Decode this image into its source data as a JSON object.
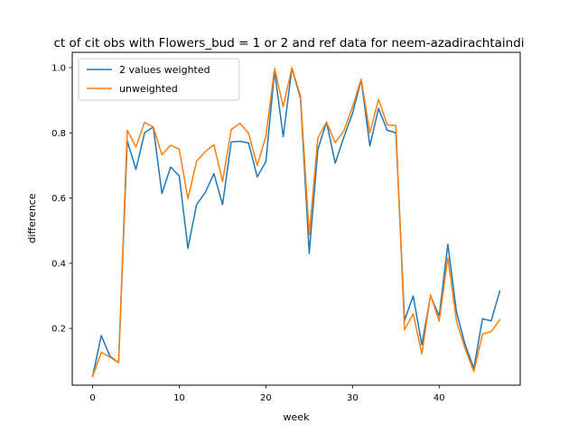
{
  "chart_data": {
    "type": "line",
    "title": "ct of cit obs with Flowers_bud = 1 or 2 and ref data for neem-azadirachtaindi",
    "xlabel": "week",
    "ylabel": "difference",
    "xlim": [
      -2.35,
      49.35
    ],
    "ylim": [
      0.026,
      1.047
    ],
    "xticks": [
      0,
      10,
      20,
      30,
      40
    ],
    "yticks": [
      0.2,
      0.4,
      0.6,
      0.8,
      1.0
    ],
    "ytick_labels": [
      "0.2",
      "0.4",
      "0.6",
      "0.8",
      "1.0"
    ],
    "grid": false,
    "legend_position": "upper-left",
    "x": [
      0,
      1,
      2,
      3,
      4,
      5,
      6,
      7,
      8,
      9,
      10,
      11,
      12,
      13,
      14,
      15,
      16,
      17,
      18,
      19,
      20,
      21,
      22,
      23,
      24,
      25,
      26,
      27,
      28,
      29,
      30,
      31,
      32,
      33,
      34,
      35,
      36,
      37,
      38,
      39,
      40,
      41,
      42,
      43,
      44,
      45,
      46,
      47
    ],
    "series": [
      {
        "name": "2 values weighted",
        "color": "#1f77b4",
        "values": [
          0.053,
          0.178,
          0.115,
          0.095,
          0.775,
          0.688,
          0.8,
          0.818,
          0.614,
          0.695,
          0.668,
          0.446,
          0.58,
          0.617,
          0.675,
          0.58,
          0.772,
          0.774,
          0.769,
          0.665,
          0.712,
          0.99,
          0.788,
          0.998,
          0.905,
          0.43,
          0.75,
          0.833,
          0.707,
          0.787,
          0.86,
          0.962,
          0.76,
          0.875,
          0.808,
          0.8,
          0.225,
          0.3,
          0.15,
          0.3,
          0.238,
          0.458,
          0.25,
          0.15,
          0.078,
          0.23,
          0.223,
          0.315
        ]
      },
      {
        "name": "unweighted",
        "color": "#ff7f0e",
        "values": [
          0.053,
          0.127,
          0.112,
          0.095,
          0.808,
          0.757,
          0.832,
          0.818,
          0.733,
          0.762,
          0.75,
          0.598,
          0.713,
          0.742,
          0.764,
          0.651,
          0.81,
          0.829,
          0.799,
          0.7,
          0.789,
          0.998,
          0.88,
          1.0,
          0.912,
          0.487,
          0.785,
          0.833,
          0.77,
          0.806,
          0.88,
          0.965,
          0.8,
          0.903,
          0.825,
          0.822,
          0.196,
          0.245,
          0.122,
          0.303,
          0.222,
          0.417,
          0.222,
          0.138,
          0.068,
          0.183,
          0.19,
          0.227
        ]
      }
    ]
  }
}
